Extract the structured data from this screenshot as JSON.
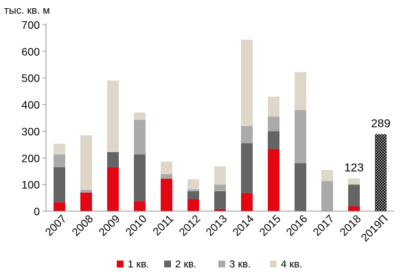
{
  "chart_data": {
    "type": "bar",
    "stacked": true,
    "unit_label": "тыс. кв. м",
    "categories": [
      "2007",
      "2008",
      "2009",
      "2010",
      "2011",
      "2012",
      "2013",
      "2014",
      "2015",
      "2016",
      "2017",
      "2018",
      "2019П"
    ],
    "series": [
      {
        "name": "1 кв.",
        "color": "#e30613",
        "values": [
          33,
          70,
          165,
          38,
          122,
          45,
          8,
          68,
          233,
          0,
          0,
          18,
          0
        ]
      },
      {
        "name": "2 кв.",
        "color": "#646464",
        "values": [
          132,
          0,
          57,
          175,
          0,
          30,
          67,
          187,
          67,
          180,
          0,
          82,
          0
        ]
      },
      {
        "name": "3 кв.",
        "color": "#aaaaaa",
        "values": [
          48,
          10,
          0,
          130,
          17,
          7,
          25,
          65,
          55,
          200,
          113,
          0,
          0
        ]
      },
      {
        "name": "4 кв.",
        "color": "#ddd6c9",
        "values": [
          40,
          205,
          268,
          27,
          47,
          38,
          68,
          323,
          75,
          142,
          42,
          23,
          0
        ]
      }
    ],
    "forecast": {
      "category": "2019П",
      "value": 289,
      "pattern": "black-white-crosshatch"
    },
    "data_labels": [
      {
        "category": "2018",
        "text": "123",
        "value": 123
      },
      {
        "category": "2019П",
        "text": "289",
        "value": 289
      }
    ],
    "yticks": [
      0,
      100,
      200,
      300,
      400,
      500,
      600,
      700
    ],
    "ylim": [
      0,
      700
    ],
    "grid": false,
    "legend_position": "bottom",
    "xlabel": "",
    "ylabel": ""
  }
}
